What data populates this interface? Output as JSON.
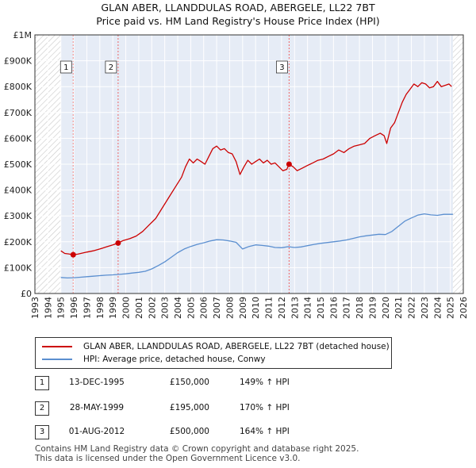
{
  "chart_data": {
    "type": "line",
    "title": "GLAN ABER, LLANDDULAS ROAD, ABERGELE, LL22 7BT",
    "subtitle": "Price paid vs. HM Land Registry's House Price Index (HPI)",
    "xlim": [
      1993,
      2026
    ],
    "ylim": [
      0,
      1000000
    ],
    "x_ticks": [
      "1993",
      "1994",
      "1995",
      "1996",
      "1997",
      "1998",
      "1999",
      "2000",
      "2001",
      "2002",
      "2003",
      "2004",
      "2005",
      "2006",
      "2007",
      "2008",
      "2009",
      "2010",
      "2011",
      "2012",
      "2013",
      "2014",
      "2015",
      "2016",
      "2017",
      "2018",
      "2019",
      "2020",
      "2021",
      "2022",
      "2023",
      "2024",
      "2025",
      "2026"
    ],
    "y_ticks": [
      {
        "value": 0,
        "label": "£0"
      },
      {
        "value": 100000,
        "label": "£100K"
      },
      {
        "value": 200000,
        "label": "£200K"
      },
      {
        "value": 300000,
        "label": "£300K"
      },
      {
        "value": 400000,
        "label": "£400K"
      },
      {
        "value": 500000,
        "label": "£500K"
      },
      {
        "value": 600000,
        "label": "£600K"
      },
      {
        "value": 700000,
        "label": "£700K"
      },
      {
        "value": 800000,
        "label": "£800K"
      },
      {
        "value": 900000,
        "label": "£900K"
      },
      {
        "value": 1000000,
        "label": "£1M"
      }
    ],
    "grid": true,
    "hatched_ranges": [
      [
        1993,
        1995.0
      ],
      [
        2025.2,
        2026
      ]
    ],
    "shaded_range": [
      1995.0,
      2025.2
    ],
    "series": [
      {
        "name": "GLAN ABER, LLANDDULAS ROAD, ABERGELE, LL22 7BT (detached house)",
        "color": "#cc0000",
        "x": [
          1995.0,
          1995.3,
          1995.6,
          1995.95,
          1996.3,
          1997.0,
          1997.5,
          1998.0,
          1998.5,
          1999.0,
          1999.41,
          1999.8,
          2000.3,
          2000.8,
          2001.3,
          2001.8,
          2002.3,
          2002.8,
          2003.3,
          2003.8,
          2004.3,
          2004.6,
          2004.9,
          2005.2,
          2005.5,
          2005.8,
          2006.1,
          2006.4,
          2006.7,
          2007.0,
          2007.3,
          2007.6,
          2007.9,
          2008.2,
          2008.5,
          2008.8,
          2009.1,
          2009.4,
          2009.7,
          2010.0,
          2010.3,
          2010.6,
          2010.9,
          2011.2,
          2011.5,
          2011.8,
          2012.1,
          2012.4,
          2012.58,
          2012.9,
          2013.2,
          2013.6,
          2014.0,
          2014.4,
          2014.8,
          2015.2,
          2015.6,
          2016.0,
          2016.4,
          2016.8,
          2017.2,
          2017.6,
          2018.0,
          2018.4,
          2018.8,
          2019.2,
          2019.6,
          2019.9,
          2020.1,
          2020.4,
          2020.7,
          2021.0,
          2021.3,
          2021.6,
          2021.9,
          2022.2,
          2022.5,
          2022.8,
          2023.1,
          2023.4,
          2023.7,
          2024.0,
          2024.3,
          2024.6,
          2024.9,
          2025.1
        ],
        "y": [
          165000,
          155000,
          153000,
          150000,
          152000,
          160000,
          165000,
          172000,
          180000,
          188000,
          195000,
          205000,
          212000,
          222000,
          240000,
          265000,
          290000,
          330000,
          370000,
          410000,
          450000,
          490000,
          520000,
          505000,
          520000,
          510000,
          500000,
          530000,
          560000,
          570000,
          555000,
          560000,
          545000,
          540000,
          510000,
          460000,
          490000,
          515000,
          500000,
          510000,
          520000,
          505000,
          515000,
          500000,
          505000,
          490000,
          475000,
          480000,
          500000,
          490000,
          475000,
          485000,
          495000,
          505000,
          515000,
          520000,
          530000,
          540000,
          555000,
          545000,
          560000,
          570000,
          575000,
          580000,
          600000,
          610000,
          620000,
          610000,
          580000,
          640000,
          660000,
          700000,
          740000,
          770000,
          790000,
          810000,
          800000,
          815000,
          810000,
          795000,
          800000,
          820000,
          800000,
          805000,
          810000,
          800000
        ]
      },
      {
        "name": "HPI: Average price, detached house, Conwy",
        "color": "#5b8fd0",
        "x": [
          1995.0,
          1995.5,
          1996.0,
          1996.5,
          1997.0,
          1997.5,
          1998.0,
          1998.5,
          1999.0,
          1999.5,
          2000.0,
          2000.5,
          2001.0,
          2001.5,
          2002.0,
          2002.5,
          2003.0,
          2003.5,
          2004.0,
          2004.5,
          2005.0,
          2005.5,
          2006.0,
          2006.5,
          2007.0,
          2007.5,
          2008.0,
          2008.5,
          2009.0,
          2009.5,
          2010.0,
          2010.5,
          2011.0,
          2011.5,
          2012.0,
          2012.5,
          2013.0,
          2013.5,
          2014.0,
          2014.5,
          2015.0,
          2015.5,
          2016.0,
          2016.5,
          2017.0,
          2017.5,
          2018.0,
          2018.5,
          2019.0,
          2019.5,
          2020.0,
          2020.5,
          2021.0,
          2021.5,
          2022.0,
          2022.5,
          2023.0,
          2023.5,
          2024.0,
          2024.5,
          2025.0,
          2025.2
        ],
        "y": [
          62000,
          60000,
          61000,
          63000,
          65000,
          67000,
          69000,
          71000,
          72000,
          74000,
          76000,
          79000,
          82000,
          86000,
          95000,
          108000,
          122000,
          140000,
          158000,
          172000,
          182000,
          190000,
          196000,
          203000,
          208000,
          207000,
          203000,
          198000,
          172000,
          182000,
          188000,
          186000,
          183000,
          178000,
          177000,
          181000,
          178000,
          180000,
          185000,
          190000,
          194000,
          197000,
          200000,
          203000,
          207000,
          213000,
          219000,
          223000,
          226000,
          229000,
          228000,
          240000,
          260000,
          280000,
          292000,
          303000,
          308000,
          304000,
          302000,
          306000,
          306000,
          306000
        ]
      }
    ],
    "sales": [
      {
        "label": "1",
        "x": 1995.95,
        "y": 150000,
        "date": "13-DEC-1995",
        "price": "£150,000",
        "hpi": "149% ↑ HPI"
      },
      {
        "label": "2",
        "x": 1999.41,
        "y": 195000,
        "date": "28-MAY-1999",
        "price": "£195,000",
        "hpi": "170% ↑ HPI"
      },
      {
        "label": "3",
        "x": 2012.58,
        "y": 500000,
        "date": "01-AUG-2012",
        "price": "£500,000",
        "hpi": "164% ↑ HPI"
      }
    ]
  },
  "legend": {
    "property_label": "GLAN ABER, LLANDDULAS ROAD, ABERGELE, LL22 7BT (detached house)",
    "hpi_label": "HPI: Average price, detached house, Conwy"
  },
  "footer": {
    "line1": "Contains HM Land Registry data © Crown copyright and database right 2025.",
    "line2": "This data is licensed under the Open Government Licence v3.0."
  }
}
